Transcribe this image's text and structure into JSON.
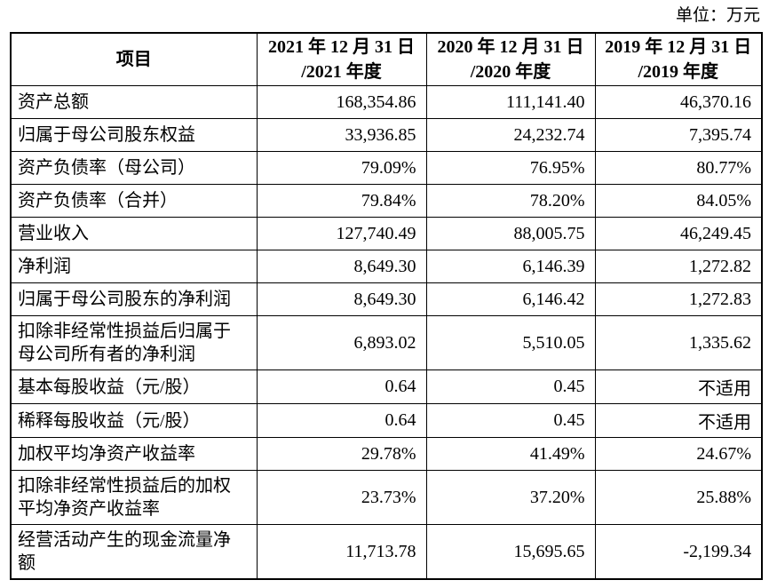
{
  "unit_label": "单位：万元",
  "colors": {
    "text": "#000000",
    "border": "#000000",
    "background": "#ffffff"
  },
  "table": {
    "header": {
      "item": "项目",
      "y2021": "2021 年 12 月 31 日\n/2021 年度",
      "y2020": "2020 年 12 月 31 日\n/2020 年度",
      "y2019": "2019 年 12 月 31 日\n/2019 年度"
    },
    "rows": [
      {
        "label": "资产总额",
        "v2021": "168,354.86",
        "v2020": "111,141.40",
        "v2019": "46,370.16"
      },
      {
        "label": "归属于母公司股东权益",
        "v2021": "33,936.85",
        "v2020": "24,232.74",
        "v2019": "7,395.74"
      },
      {
        "label": "资产负债率（母公司）",
        "v2021": "79.09%",
        "v2020": "76.95%",
        "v2019": "80.77%"
      },
      {
        "label": "资产负债率（合并）",
        "v2021": "79.84%",
        "v2020": "78.20%",
        "v2019": "84.05%"
      },
      {
        "label": "营业收入",
        "v2021": "127,740.49",
        "v2020": "88,005.75",
        "v2019": "46,249.45"
      },
      {
        "label": "净利润",
        "v2021": "8,649.30",
        "v2020": "6,146.39",
        "v2019": "1,272.82"
      },
      {
        "label": "归属于母公司股东的净利润",
        "v2021": "8,649.30",
        "v2020": "6,146.42",
        "v2019": "1,272.83"
      },
      {
        "label": "扣除非经常性损益后归属于\n母公司所有者的净利润",
        "v2021": "6,893.02",
        "v2020": "5,510.05",
        "v2019": "1,335.62"
      },
      {
        "label": "基本每股收益（元/股）",
        "v2021": "0.64",
        "v2020": "0.45",
        "v2019": "不适用"
      },
      {
        "label": "稀释每股收益（元/股）",
        "v2021": "0.64",
        "v2020": "0.45",
        "v2019": "不适用"
      },
      {
        "label": "加权平均净资产收益率",
        "v2021": "29.78%",
        "v2020": "41.49%",
        "v2019": "24.67%"
      },
      {
        "label": "扣除非经常性损益后的加权\n平均净资产收益率",
        "v2021": "23.73%",
        "v2020": "37.20%",
        "v2019": "25.88%"
      },
      {
        "label": "经营活动产生的现金流量净\n额",
        "v2021": "11,713.78",
        "v2020": "15,695.65",
        "v2019": "-2,199.34"
      }
    ]
  }
}
